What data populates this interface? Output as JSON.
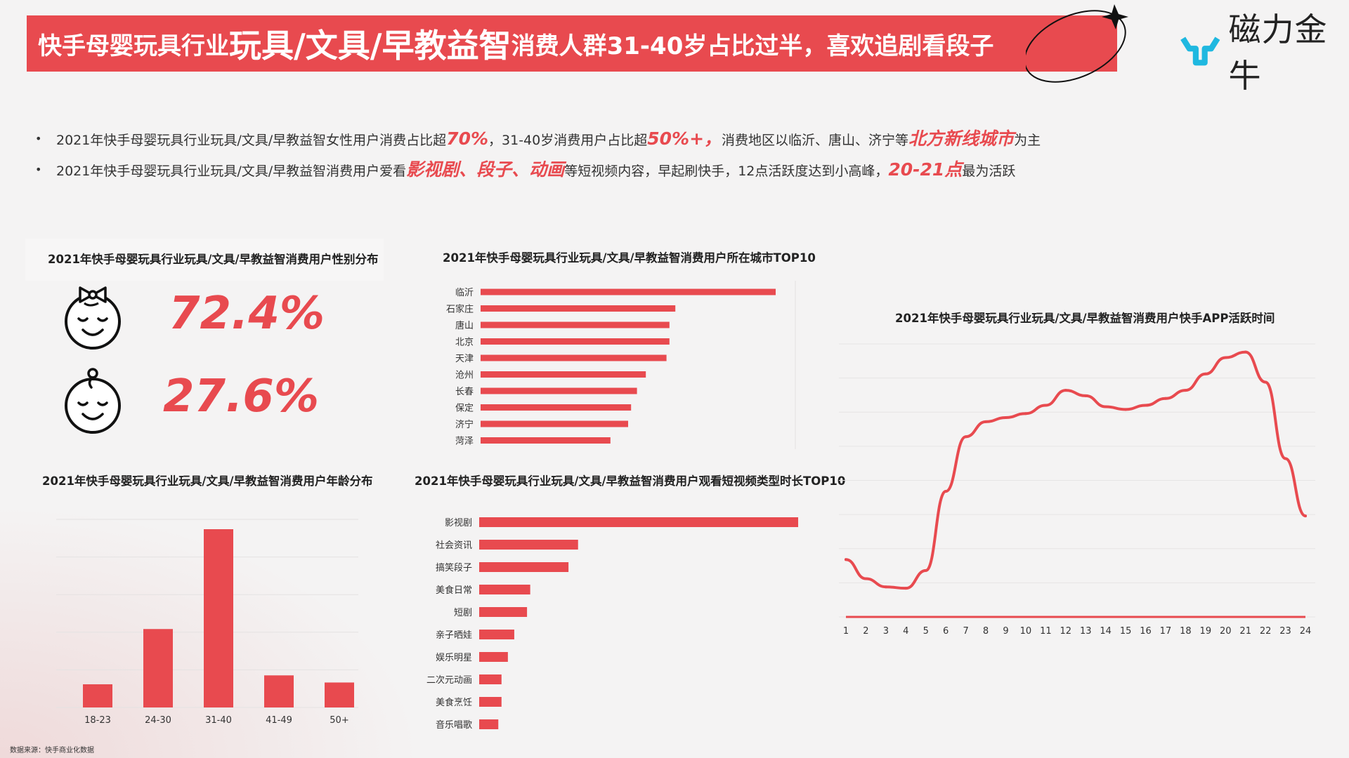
{
  "title": {
    "part1": "快手母婴玩具行业",
    "part2": "玩具/文具/早教益智",
    "part3": "消费人群31-40岁占比过半，喜欢追剧看段子"
  },
  "logo": {
    "text": "磁力金牛",
    "icon": "bull-logo-icon"
  },
  "bullets": [
    {
      "a": "2021年快手母婴玩具行业玩具/文具/早教益智女性用户消费占比超",
      "h1": "70%",
      "b": "，31-40岁消费用户占比超",
      "h2": "50%+，",
      "c": "消费地区以临沂、唐山、济宁等",
      "h3": "北方新线城市",
      "d": "为主"
    },
    {
      "a": "2021年快手母婴玩具行业玩具/文具/早教益智消费用户爱看",
      "h1": "影视剧、段子、动画",
      "b": "等短视频内容，早起刷快手，12点活跃度达到小高峰，",
      "h2": "20-21点",
      "c": "最为活跃"
    }
  ],
  "gender": {
    "title": "2021年快手母婴玩具行业玩具/文具/早教益智消费用户性别分布",
    "female_pct": "72.4%",
    "male_pct": "27.6%",
    "female_icon": "baby-girl-icon",
    "male_icon": "baby-boy-icon"
  },
  "colors": {
    "accent": "#e84a4f",
    "bar": "#e84a4f",
    "text": "#333333"
  },
  "chart_data": [
    {
      "id": "city",
      "type": "bar",
      "orientation": "horizontal",
      "title": "2021年快手母婴玩具行业玩具/文具/早教益智消费用户所在城市TOP10",
      "categories": [
        "临沂",
        "石家庄",
        "唐山",
        "北京",
        "天津",
        "沧州",
        "长春",
        "保定",
        "济宁",
        "菏泽"
      ],
      "values": [
        100,
        66,
        64,
        64,
        63,
        56,
        53,
        51,
        50,
        44
      ],
      "xlim": [
        0,
        100
      ],
      "grid": false
    },
    {
      "id": "age",
      "type": "bar",
      "title": "2021年快手母婴玩具行业玩具/文具/早教益智消费用户年龄分布",
      "categories": [
        "18-23",
        "24-30",
        "31-40",
        "41-49",
        "50+"
      ],
      "values": [
        13,
        44,
        100,
        18,
        14
      ],
      "ylim": [
        0,
        100
      ],
      "grid": true
    },
    {
      "id": "video",
      "type": "bar",
      "orientation": "horizontal",
      "title": "2021年快手母婴玩具行业玩具/文具/早教益智消费用户观看短视频类型时长TOP10",
      "categories": [
        "影视剧",
        "社会资讯",
        "搞笑段子",
        "美食日常",
        "短剧",
        "亲子晒娃",
        "娱乐明星",
        "二次元动画",
        "美食烹饪",
        "音乐唱歌"
      ],
      "values": [
        100,
        31,
        28,
        16,
        15,
        11,
        9,
        7,
        7,
        6
      ],
      "xlim": [
        0,
        100
      ],
      "grid": false
    },
    {
      "id": "active",
      "type": "line",
      "title": "2021年快手母婴玩具行业玩具/文具/早教益智消费用户快手APP活跃时间",
      "x": [
        "1",
        "2",
        "3",
        "4",
        "5",
        "6",
        "7",
        "8",
        "9",
        "10",
        "11",
        "12",
        "13",
        "14",
        "15",
        "16",
        "17",
        "18",
        "19",
        "20",
        "21",
        "22",
        "23",
        "24"
      ],
      "values": [
        21,
        14,
        11,
        10.5,
        17,
        46,
        66,
        71.5,
        73,
        74.5,
        77.5,
        83,
        81,
        77,
        76,
        77.5,
        80,
        83,
        89,
        95,
        97,
        86,
        58,
        37
      ],
      "ylim": [
        0,
        100
      ],
      "grid": true
    }
  ],
  "source": "数据来源：快手商业化数据"
}
